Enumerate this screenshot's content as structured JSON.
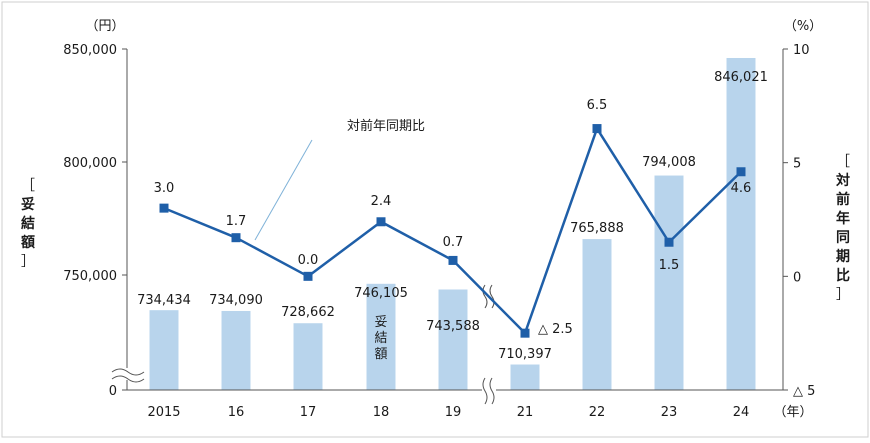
{
  "chart_data": {
    "type": "bar+line",
    "categories": [
      "2015",
      "16",
      "17",
      "18",
      "19",
      "21",
      "22",
      "23",
      "24"
    ],
    "x_unit": "（年）",
    "bars": {
      "name": "妥結額",
      "values": [
        734434,
        734090,
        728662,
        746105,
        743588,
        710397,
        765888,
        794008,
        846021
      ],
      "labels": [
        "734,434",
        "734,090",
        "728,662",
        "746,105",
        "743,588",
        "710,397",
        "765,888",
        "794,008",
        "846,021"
      ],
      "color": "#b8d4ec"
    },
    "line": {
      "name": "対前年同期比",
      "values": [
        3.0,
        1.7,
        0.0,
        2.4,
        0.7,
        -2.5,
        6.5,
        1.5,
        4.6
      ],
      "labels": [
        "3.0",
        "1.7",
        "0.0",
        "2.4",
        "0.7",
        "△ 2.5",
        "6.5",
        "1.5",
        "4.6"
      ],
      "color": "#1f5fa8"
    },
    "left_axis": {
      "unit": "（円）",
      "title": "［妥結額］",
      "ticks": [
        850000,
        800000,
        750000,
        0
      ],
      "tick_labels": [
        "850,000",
        "800,000",
        "750,000",
        "0"
      ],
      "range": [
        700000,
        850000
      ],
      "axis_break": true
    },
    "right_axis": {
      "unit": "（%）",
      "title": "［対前年同期比］",
      "ticks": [
        10,
        5,
        0,
        -5
      ],
      "tick_labels": [
        "10",
        "5",
        "0",
        "△ 5"
      ],
      "range": [
        -5,
        10
      ]
    },
    "annotation": "対前年同期比",
    "bar_inner_label": "妥結額",
    "x_break_between": [
      "19",
      "21"
    ],
    "grid": false
  }
}
